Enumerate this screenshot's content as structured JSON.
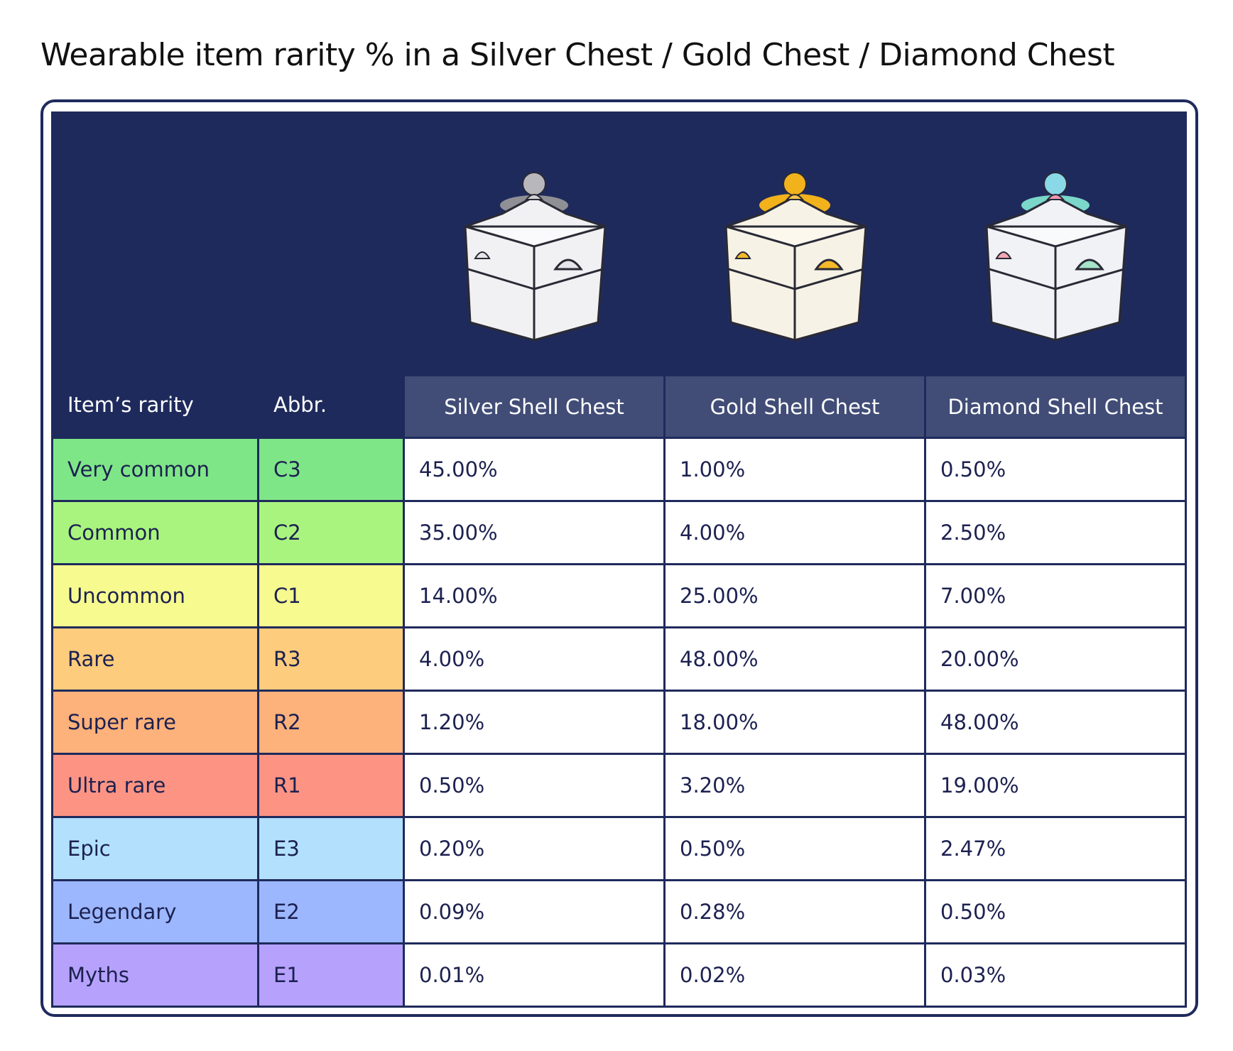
{
  "title": "Wearable item rarity % in a Silver Chest / Gold Chest / Diamond Chest",
  "headers": {
    "rarity": "Item’s rarity",
    "abbr": "Abbr.",
    "chests": [
      "Silver Shell Chest",
      "Gold Shell Chest",
      "Diamond Shell Chest"
    ]
  },
  "chest_icons": [
    "silver-shell-chest-icon",
    "gold-shell-chest-icon",
    "diamond-shell-chest-icon"
  ],
  "rows": [
    {
      "rarity": "Very common",
      "abbr": "C3",
      "color": "#7fe687",
      "values": [
        "45.00%",
        "1.00%",
        "0.50%"
      ]
    },
    {
      "rarity": "Common",
      "abbr": "C2",
      "color": "#a9f47f",
      "values": [
        "35.00%",
        "4.00%",
        "2.50%"
      ]
    },
    {
      "rarity": "Uncommon",
      "abbr": "C1",
      "color": "#f7fb8f",
      "values": [
        "14.00%",
        "25.00%",
        "7.00%"
      ]
    },
    {
      "rarity": "Rare",
      "abbr": "R3",
      "color": "#fdcc7c",
      "values": [
        "4.00%",
        "48.00%",
        "20.00%"
      ]
    },
    {
      "rarity": "Super rare",
      "abbr": "R2",
      "color": "#fdb17b",
      "values": [
        "1.20%",
        "18.00%",
        "48.00%"
      ]
    },
    {
      "rarity": "Ultra rare",
      "abbr": "R1",
      "color": "#fd9483",
      "values": [
        "0.50%",
        "3.20%",
        "19.00%"
      ]
    },
    {
      "rarity": "Epic",
      "abbr": "E3",
      "color": "#b3e1fd",
      "values": [
        "0.20%",
        "0.50%",
        "2.47%"
      ]
    },
    {
      "rarity": "Legendary",
      "abbr": "E2",
      "color": "#9cb7fd",
      "values": [
        "0.09%",
        "0.28%",
        "0.50%"
      ]
    },
    {
      "rarity": "Myths",
      "abbr": "E1",
      "color": "#b6a2fd",
      "values": [
        "0.01%",
        "0.02%",
        "0.03%"
      ]
    }
  ],
  "colors": {
    "navy": "#1f2a5c",
    "header_label_bg": "#414d77",
    "silver_accent": "#9a9a9a",
    "gold_accent": "#f2b21c",
    "diamond_accent": "#7ad7c9"
  }
}
